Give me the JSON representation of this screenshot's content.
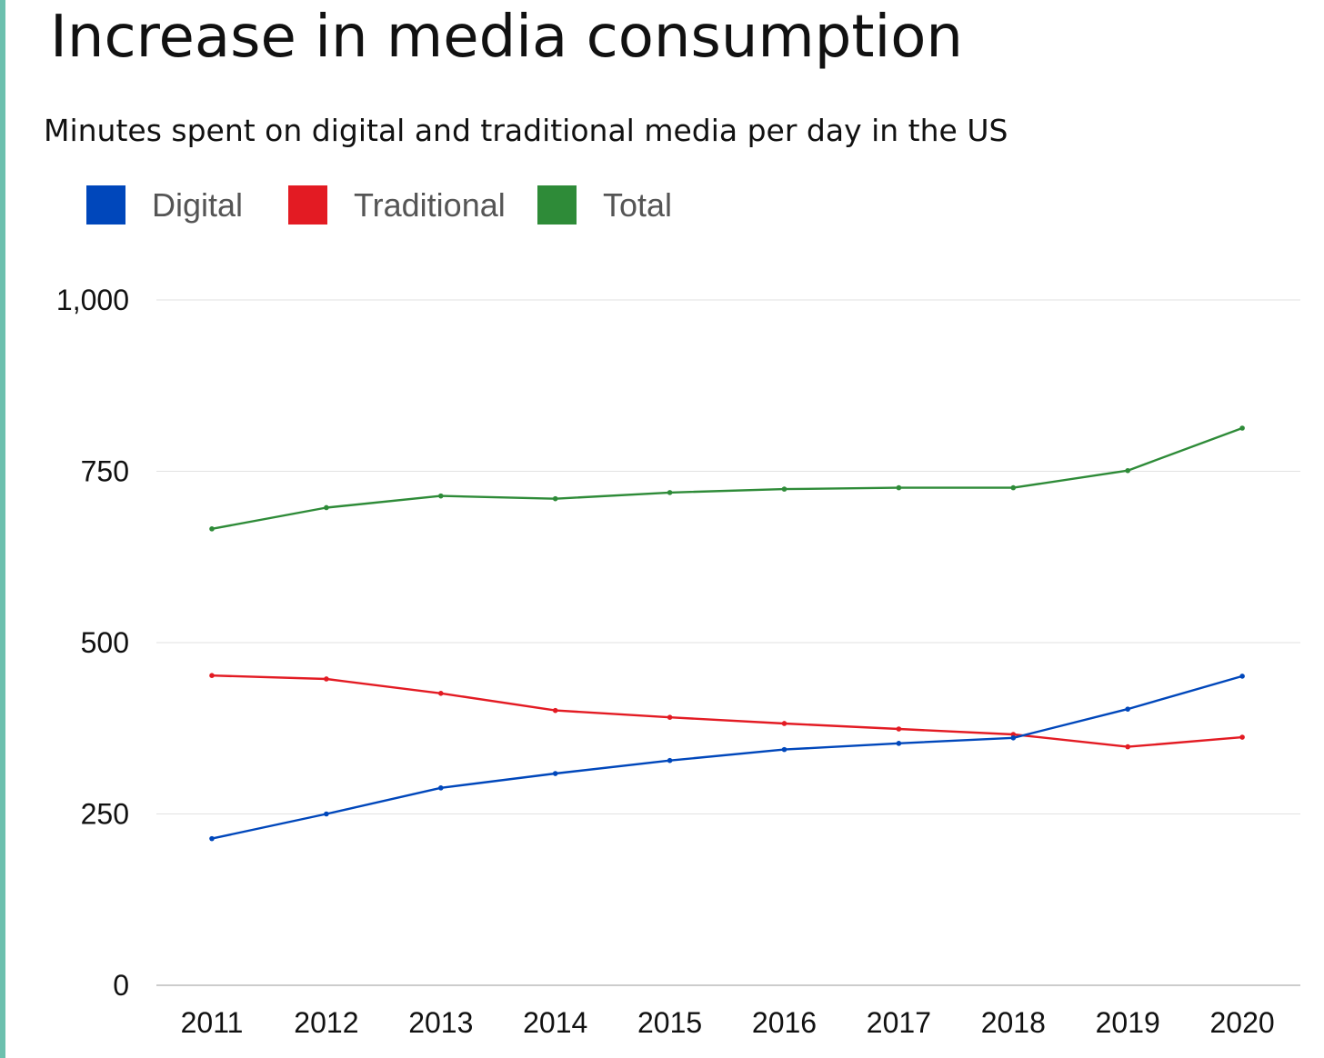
{
  "colors": {
    "accent_bar": "#6cc0ae",
    "digital": "#0047bb",
    "traditional": "#e31b23",
    "total": "#2e8b38",
    "gridline": "#e2e2e2",
    "baseline": "#bbbbbb"
  },
  "chart_data": {
    "type": "line",
    "title": "Increase in media consumption",
    "subtitle": "Minutes spent on digital and traditional media per day in the US",
    "x": [
      "2011",
      "2012",
      "2013",
      "2014",
      "2015",
      "2016",
      "2017",
      "2018",
      "2019",
      "2020"
    ],
    "series": [
      {
        "name": "Digital",
        "color": "#0047bb",
        "values": [
          214,
          250,
          288,
          309,
          328,
          344,
          353,
          361,
          403,
          451
        ]
      },
      {
        "name": "Traditional",
        "color": "#e31b23",
        "values": [
          452,
          447,
          426,
          401,
          391,
          382,
          374,
          366,
          348,
          362
        ]
      },
      {
        "name": "Total",
        "color": "#2e8b38",
        "values": [
          666,
          697,
          714,
          710,
          719,
          724,
          726,
          726,
          751,
          813
        ]
      }
    ],
    "xlabel": "",
    "ylabel": "",
    "ylim": [
      0,
      1000
    ],
    "yticks": [
      0,
      250,
      500,
      750,
      1000
    ],
    "ytick_labels": [
      "0",
      "250",
      "500",
      "750",
      "1,000"
    ],
    "grid": "horizontal",
    "legend_position": "top-left"
  }
}
